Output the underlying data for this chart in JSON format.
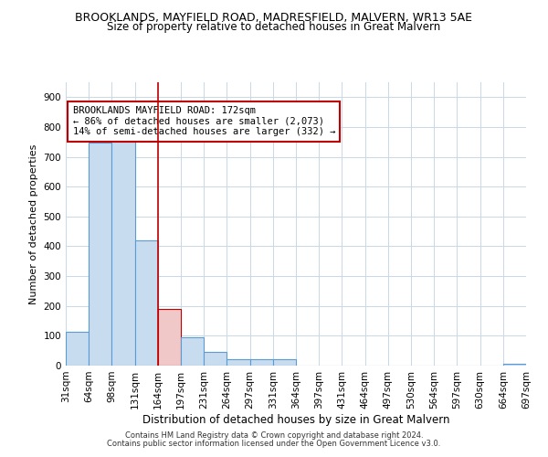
{
  "title": "BROOKLANDS, MAYFIELD ROAD, MADRESFIELD, MALVERN, WR13 5AE",
  "subtitle": "Size of property relative to detached houses in Great Malvern",
  "xlabel": "Distribution of detached houses by size in Great Malvern",
  "ylabel": "Number of detached properties",
  "bar_values": [
    113,
    748,
    750,
    420,
    190,
    95,
    47,
    22,
    20,
    20,
    0,
    0,
    0,
    0,
    0,
    0,
    0,
    0,
    0,
    5
  ],
  "bar_labels": [
    "31sqm",
    "64sqm",
    "98sqm",
    "131sqm",
    "164sqm",
    "197sqm",
    "231sqm",
    "264sqm",
    "297sqm",
    "331sqm",
    "364sqm",
    "397sqm",
    "431sqm",
    "464sqm",
    "497sqm",
    "530sqm",
    "564sqm",
    "597sqm",
    "630sqm",
    "664sqm",
    "697sqm"
  ],
  "bar_color": "#c8dcf0",
  "bar_edge_color": "#5b9bd5",
  "highlight_bar_index": 4,
  "highlight_bar_color": "#f0c8c8",
  "highlight_bar_edge_color": "#c00000",
  "property_size": 172,
  "annotation_text_line1": "BROOKLANDS MAYFIELD ROAD: 172sqm",
  "annotation_text_line2": "← 86% of detached houses are smaller (2,073)",
  "annotation_text_line3": "14% of semi-detached houses are larger (332) →",
  "annotation_box_color": "#ffffff",
  "annotation_box_edge_color": "#c00000",
  "ylim": [
    0,
    950
  ],
  "yticks": [
    0,
    100,
    200,
    300,
    400,
    500,
    600,
    700,
    800,
    900
  ],
  "footer_line1": "Contains HM Land Registry data © Crown copyright and database right 2024.",
  "footer_line2": "Contains public sector information licensed under the Open Government Licence v3.0.",
  "background_color": "#ffffff",
  "grid_color": "#c8d8e8",
  "title_fontsize": 9,
  "subtitle_fontsize": 8.5,
  "xlabel_fontsize": 8.5,
  "ylabel_fontsize": 8,
  "tick_fontsize": 7.5,
  "annotation_fontsize": 7.5,
  "footer_fontsize": 6
}
